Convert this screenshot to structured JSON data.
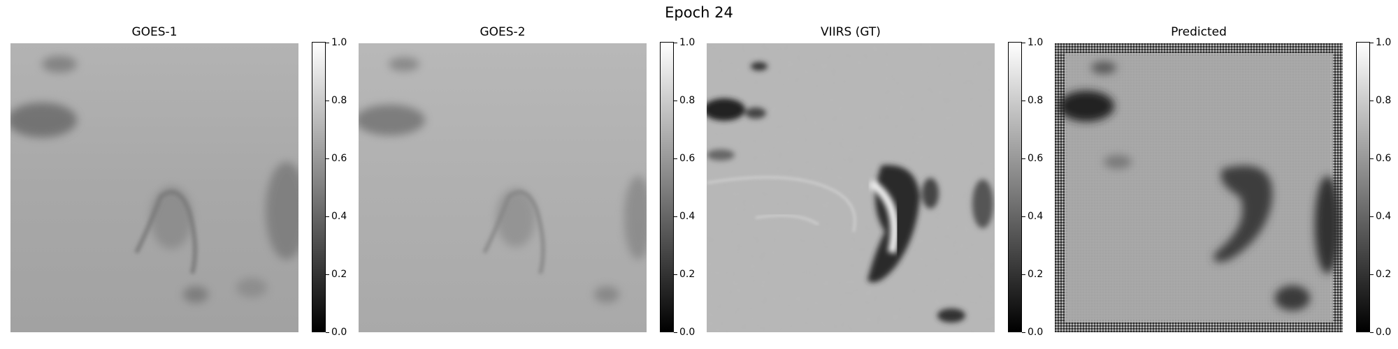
{
  "figure": {
    "title": "Epoch 24"
  },
  "panels": [
    {
      "title": "GOES-1",
      "colorbar_ticks": [
        "0.0",
        "0.2",
        "0.4",
        "0.6",
        "0.8",
        "1.0"
      ],
      "colormap": "gray"
    },
    {
      "title": "GOES-2",
      "colorbar_ticks": [
        "0.0",
        "0.2",
        "0.4",
        "0.6",
        "0.8",
        "1.0"
      ],
      "colormap": "gray"
    },
    {
      "title": "VIIRS (GT)",
      "colorbar_ticks": [
        "0.0",
        "0.2",
        "0.4",
        "0.6",
        "0.8",
        "1.0"
      ],
      "colormap": "gray"
    },
    {
      "title": "Predicted",
      "colorbar_ticks": [
        "0.0",
        "0.2",
        "0.4",
        "0.6",
        "0.8",
        "1.0"
      ],
      "colormap": "gray"
    }
  ],
  "colors": {
    "colormap_low": "#000000",
    "colormap_high": "#ffffff"
  }
}
